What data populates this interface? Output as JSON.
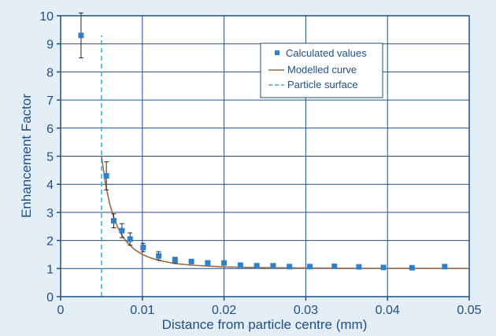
{
  "chart_data": {
    "type": "scatter",
    "xlabel": "Distance from particle centre (mm)",
    "ylabel": "Enhancement Factor",
    "xlim": [
      0,
      0.05
    ],
    "ylim": [
      0,
      10
    ],
    "x_ticks": [
      0,
      0.01,
      0.02,
      0.03,
      0.04,
      0.05
    ],
    "x_tick_labels": [
      "0",
      "0.01",
      "0.02",
      "0.03",
      "0.04",
      "0.05"
    ],
    "y_ticks": [
      0,
      1,
      2,
      3,
      4,
      5,
      6,
      7,
      8,
      9,
      10
    ],
    "y_tick_labels": [
      "0",
      "1",
      "2",
      "3",
      "4",
      "5",
      "6",
      "7",
      "8",
      "9",
      "10"
    ],
    "grid": true,
    "legend_position": "top-right",
    "colors": {
      "points": "#2f80c8",
      "error_bars": "#2a2a2a",
      "curve": "#9a6a4a",
      "surface_line": "#38a9d9",
      "axes": "#1f4f86",
      "grid": "#1f4f86",
      "plot_background": "#ffffff",
      "page_background": "#e3eef6"
    },
    "series": [
      {
        "name": "Calculated values",
        "kind": "points_with_error_bars",
        "x": [
          0.0025,
          0.0056,
          0.0065,
          0.0075,
          0.0085,
          0.0101,
          0.012,
          0.014,
          0.016,
          0.018,
          0.02,
          0.022,
          0.024,
          0.026,
          0.028,
          0.0305,
          0.0335,
          0.0365,
          0.0395,
          0.043,
          0.047
        ],
        "y": [
          9.3,
          4.3,
          2.7,
          2.35,
          2.05,
          1.75,
          1.45,
          1.3,
          1.25,
          1.2,
          1.2,
          1.12,
          1.1,
          1.1,
          1.07,
          1.07,
          1.08,
          1.06,
          1.04,
          1.03,
          1.07
        ],
        "y_err": [
          0.8,
          0.5,
          0.25,
          0.25,
          0.22,
          0.15,
          0.15,
          0.1,
          0.08,
          0.08,
          0.07,
          0.05,
          0.05,
          0.05,
          0.04,
          0.04,
          0.04,
          0.03,
          0.03,
          0.03,
          0.03
        ]
      },
      {
        "name": "Modelled curve",
        "kind": "line",
        "x": [
          0.005,
          0.0055,
          0.006,
          0.0065,
          0.007,
          0.0075,
          0.008,
          0.009,
          0.01,
          0.011,
          0.012,
          0.014,
          0.016,
          0.018,
          0.02,
          0.025,
          0.03,
          0.035,
          0.04,
          0.045,
          0.05
        ],
        "y": [
          5.0,
          4.0,
          3.31,
          2.82,
          2.46,
          2.19,
          1.98,
          1.69,
          1.5,
          1.38,
          1.29,
          1.18,
          1.12,
          1.09,
          1.06,
          1.032,
          1.019,
          1.012,
          1.008,
          1.006,
          1.004
        ]
      },
      {
        "name": "Particle surface",
        "kind": "vline",
        "x": 0.005,
        "y_range": [
          0,
          9.3
        ]
      }
    ]
  }
}
